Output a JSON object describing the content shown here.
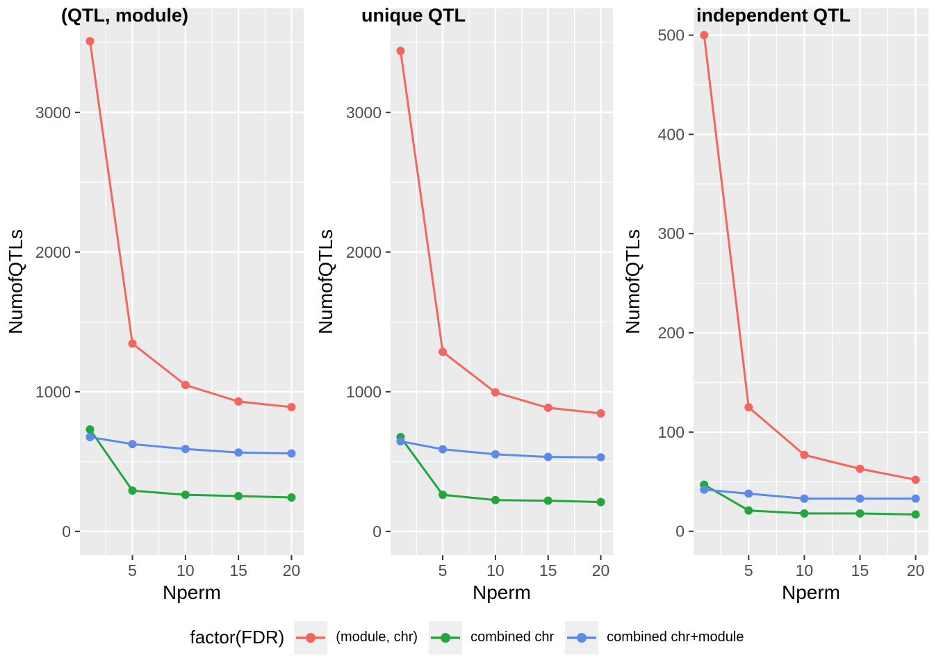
{
  "figure": {
    "background": "#FFFFFF",
    "panel_bg": "#EBEBEB",
    "grid_color": "#FFFFFF",
    "tick_label_color": "#4D4D4D",
    "tick_mark_color": "#333333",
    "title_color": "#000000"
  },
  "legend": {
    "title": "factor(FDR)",
    "key_bg": "#EFEFEF",
    "position": "bottom",
    "items": [
      {
        "label": "(module, chr)",
        "color": "#F4655D"
      },
      {
        "label": "combined chr",
        "color": "#21A73B"
      },
      {
        "label": "combined chr+module",
        "color": "#5B8AE8"
      }
    ]
  },
  "chart_data": [
    {
      "type": "line",
      "title": "(QTL, module)",
      "xlabel": "Nperm",
      "ylabel": "NumofQTLs",
      "x": [
        1,
        5,
        10,
        15,
        20
      ],
      "xlim": [
        0.05,
        21.15
      ],
      "xticks": [
        5,
        10,
        15,
        20
      ],
      "xticks_minor": [
        2.5,
        7.5,
        12.5,
        17.5
      ],
      "ylim": [
        -170,
        3745
      ],
      "yticks": [
        0,
        1000,
        2000,
        3000
      ],
      "yticks_minor": [
        500,
        1500,
        2500,
        3500
      ],
      "grid": true,
      "series": [
        {
          "name": "(module, chr)",
          "color": "#F4655D",
          "values": [
            3510,
            1345,
            1048,
            930,
            890
          ]
        },
        {
          "name": "combined chr",
          "color": "#21A73B",
          "values": [
            730,
            292,
            262,
            253,
            243
          ]
        },
        {
          "name": "combined chr+module",
          "color": "#5B8AE8",
          "values": [
            675,
            625,
            590,
            565,
            558
          ]
        }
      ]
    },
    {
      "type": "line",
      "title": "unique QTL",
      "xlabel": "Nperm",
      "ylabel": "NumofQTLs",
      "x": [
        1,
        5,
        10,
        15,
        20
      ],
      "xlim": [
        0.05,
        21.15
      ],
      "xticks": [
        5,
        10,
        15,
        20
      ],
      "xticks_minor": [
        2.5,
        7.5,
        12.5,
        17.5
      ],
      "ylim": [
        -170,
        3745
      ],
      "yticks": [
        0,
        1000,
        2000,
        3000
      ],
      "yticks_minor": [
        500,
        1500,
        2500,
        3500
      ],
      "grid": true,
      "series": [
        {
          "name": "(module, chr)",
          "color": "#F4655D",
          "values": [
            3440,
            1285,
            995,
            885,
            845
          ]
        },
        {
          "name": "combined chr",
          "color": "#21A73B",
          "values": [
            675,
            262,
            224,
            220,
            210
          ]
        },
        {
          "name": "combined chr+module",
          "color": "#5B8AE8",
          "values": [
            645,
            588,
            552,
            533,
            530
          ]
        }
      ]
    },
    {
      "type": "line",
      "title": "independent QTL",
      "xlabel": "Nperm",
      "ylabel": "NumofQTLs",
      "x": [
        1,
        5,
        10,
        15,
        20
      ],
      "xlim": [
        0.05,
        21.15
      ],
      "xticks": [
        5,
        10,
        15,
        20
      ],
      "xticks_minor": [
        2.5,
        7.5,
        12.5,
        17.5
      ],
      "ylim": [
        -24,
        527
      ],
      "yticks": [
        0,
        100,
        200,
        300,
        400,
        500
      ],
      "yticks_minor": [
        50,
        150,
        250,
        350,
        450
      ],
      "grid": true,
      "series": [
        {
          "name": "(module, chr)",
          "color": "#F4655D",
          "values": [
            500,
            125,
            77,
            63,
            52
          ]
        },
        {
          "name": "combined chr",
          "color": "#21A73B",
          "values": [
            47,
            21,
            18,
            18,
            17
          ]
        },
        {
          "name": "combined chr+module",
          "color": "#5B8AE8",
          "values": [
            42,
            38,
            33,
            33,
            33
          ]
        }
      ]
    }
  ]
}
